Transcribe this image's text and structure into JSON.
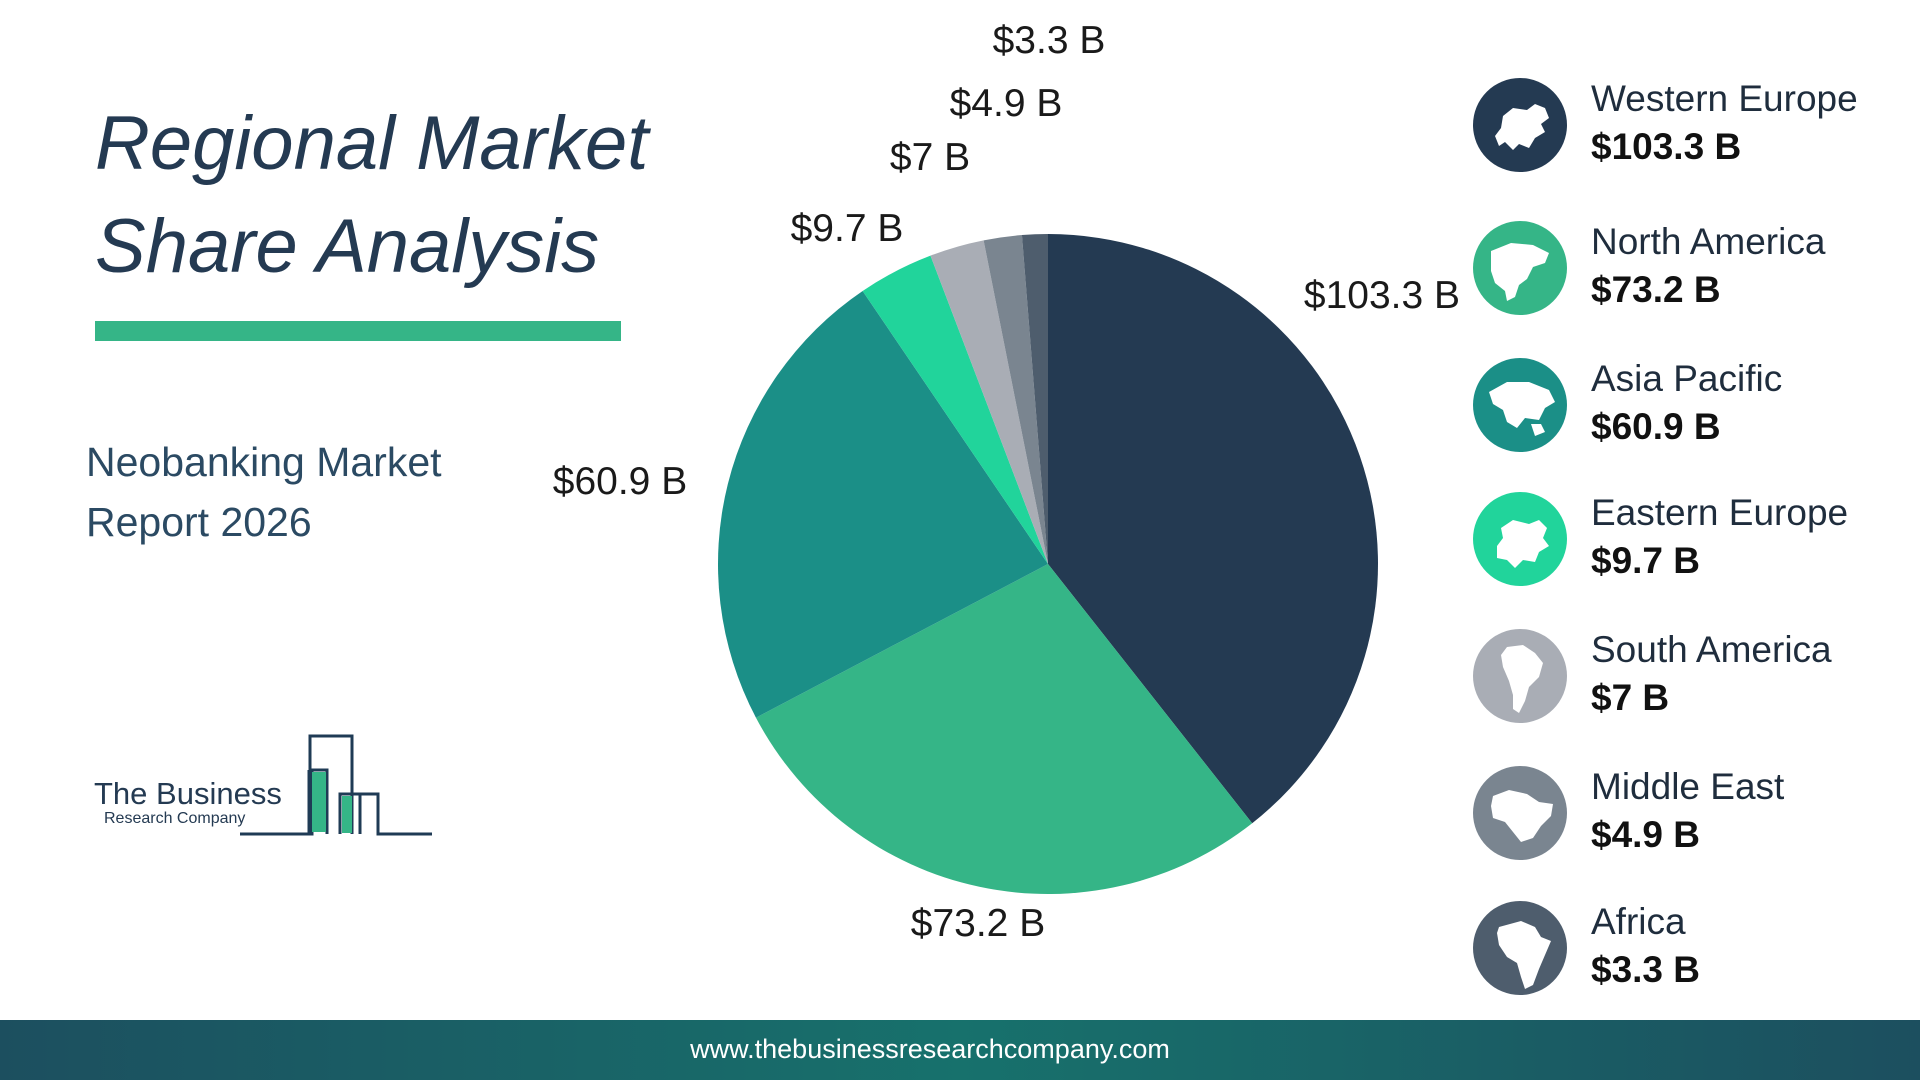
{
  "title_line1": "Regional Market",
  "title_line2": "Share Analysis",
  "subtitle_line1": "Neobanking Market",
  "subtitle_line2": "Report 2026",
  "logo": {
    "line1": "The Business",
    "line2": "Research Company"
  },
  "footer": {
    "url": "www.thebusinessresearchcompany.com"
  },
  "colors": {
    "accent": "#35b587",
    "title": "#243a52",
    "footer": "#17716c"
  },
  "chart_data": {
    "type": "pie",
    "categories": [
      "Western Europe",
      "North America",
      "Asia Pacific",
      "Eastern Europe",
      "South America",
      "Middle East",
      "Africa"
    ],
    "values": [
      103.3,
      73.2,
      60.9,
      9.7,
      7,
      4.9,
      3.3
    ],
    "labels": [
      "$103.3 B",
      "$73.2 B",
      "$60.9 B",
      "$9.7 B",
      "$7 B",
      "$4.9 B",
      "$3.3 B"
    ],
    "colors": [
      "#243a52",
      "#35b587",
      "#1b8f87",
      "#21d49b",
      "#a9adb5",
      "#7a8590",
      "#4e5d6d"
    ],
    "legend_position": "right"
  },
  "legend": [
    {
      "name": "Western Europe",
      "value": "$103.3 B",
      "icon": "europe-map-icon",
      "color": "#243a52"
    },
    {
      "name": "North America",
      "value": "$73.2 B",
      "icon": "north-america-map-icon",
      "color": "#35b587"
    },
    {
      "name": "Asia Pacific",
      "value": "$60.9 B",
      "icon": "asia-pacific-map-icon",
      "color": "#1b8f87"
    },
    {
      "name": "Eastern Europe",
      "value": "$9.7 B",
      "icon": "eastern-europe-map-icon",
      "color": "#21d49b"
    },
    {
      "name": "South America",
      "value": "$7 B",
      "icon": "south-america-map-icon",
      "color": "#a9adb5"
    },
    {
      "name": "Middle East",
      "value": "$4.9 B",
      "icon": "middle-east-map-icon",
      "color": "#7a8590"
    },
    {
      "name": "Africa",
      "value": "$3.3 B",
      "icon": "africa-map-icon",
      "color": "#4e5d6d"
    }
  ]
}
